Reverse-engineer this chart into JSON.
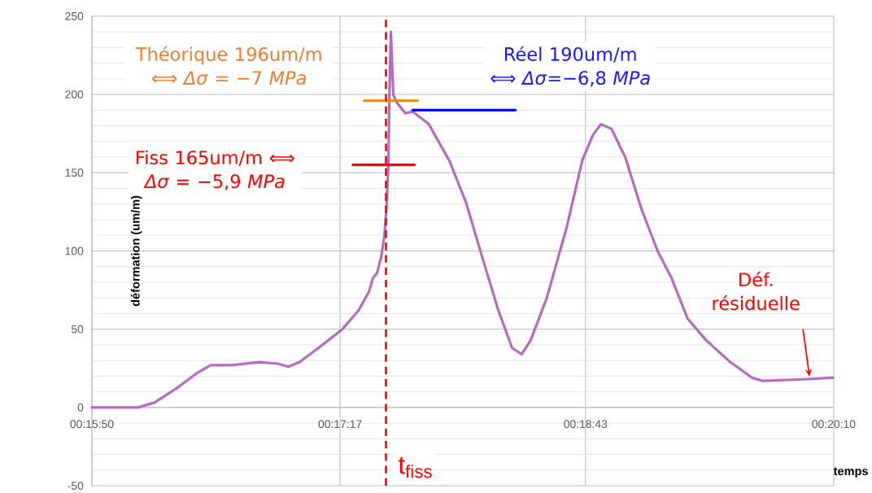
{
  "chart_data": {
    "type": "line",
    "xlabel": "temps",
    "ylabel": "déformation (um/m)",
    "x": [
      0.26389,
      0.2657,
      0.26837,
      0.26995,
      0.27231,
      0.27412,
      0.27545,
      0.2775,
      0.28017,
      0.28198,
      0.28301,
      0.28411,
      0.28615,
      0.28828,
      0.28985,
      0.29087,
      0.29127,
      0.29166,
      0.29205,
      0.29237,
      0.2926,
      0.29276,
      0.29284,
      0.293,
      0.29323,
      0.29355,
      0.29441,
      0.29512,
      0.29669,
      0.29874,
      0.30031,
      0.30189,
      0.30346,
      0.3048,
      0.30574,
      0.30661,
      0.30818,
      0.31007,
      0.31164,
      0.31266,
      0.31345,
      0.31447,
      0.31581,
      0.31738,
      0.31896,
      0.3203,
      0.32187,
      0.32368,
      0.32604,
      0.32816,
      0.32918,
      0.33312,
      0.33603
    ],
    "series": [
      {
        "color": "#b56cc0",
        "values": [
          0,
          0,
          0,
          3,
          13,
          22,
          27,
          27,
          29,
          28,
          26,
          29,
          39,
          50,
          62,
          74,
          83,
          86,
          96,
          110,
          131,
          157,
          195,
          240,
          200,
          195,
          188,
          189,
          181,
          157,
          131,
          96,
          62,
          38,
          34,
          43,
          70,
          114,
          158,
          174,
          181,
          178,
          160,
          127,
          100,
          83,
          57,
          43,
          29,
          19,
          17,
          18,
          19
        ]
      },
      {
        "type": "line",
        "color": "#e68a00",
        "x": [
          0.2904,
          0.29559
        ],
        "values": [
          196,
          196
        ]
      },
      {
        "type": "line",
        "color": "#0000ff",
        "x": [
          0.29512,
          0.30511
        ],
        "values": [
          190,
          190
        ]
      },
      {
        "type": "line",
        "color": "#ff0000",
        "x": [
          0.2893,
          0.29528
        ],
        "values": [
          155,
          155
        ]
      }
    ],
    "xlim": [
      0.263889,
      0.336111
    ],
    "xticks": [
      {
        "value": 0.263889,
        "label": "00:15:50"
      },
      {
        "value": 0.288056,
        "label": "00:17:17"
      },
      {
        "value": 0.311944,
        "label": "00:18:43"
      },
      {
        "value": 0.336111,
        "label": "00:20:10"
      }
    ],
    "ylim": [
      -50,
      250
    ],
    "yticks": [
      -50,
      0,
      50,
      100,
      150,
      200,
      250
    ],
    "grid": true,
    "ref_lines": [
      {
        "axis": "x",
        "value": 0.29252,
        "label": "t$_{fiss}$",
        "color": "#ff0000",
        "line_style": "dashed"
      }
    ],
    "annotations": [
      "Théorique 196um/m ⟺ *Δσ* = −7 *MPa*",
      "Réel 190um/m ⟺ *Δσ*=−6,8 *MPa*",
      "Fiss 165um/m ⟺ *Δσ* = −5,9 *MPa*",
      {
        "text": "Déf. résiduelle",
        "x": 0.33375,
        "y": 19
      }
    ]
  }
}
